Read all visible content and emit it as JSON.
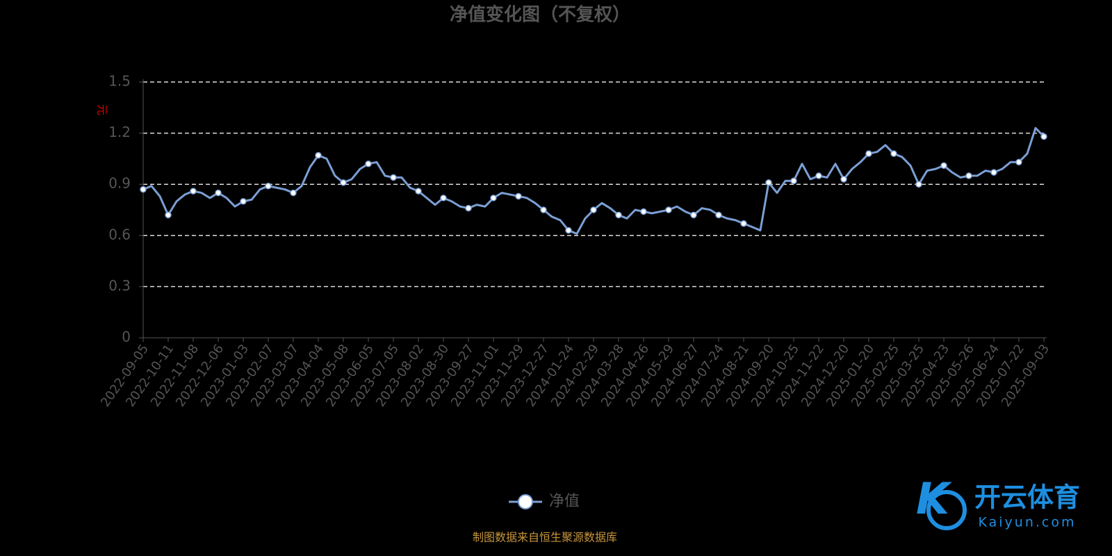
{
  "chart_data": {
    "type": "line",
    "title": "净值变化图（不复权）",
    "y_label": "元",
    "source": "制图数据来自恒生聚源数据库",
    "watermark": {
      "title": "开云体育",
      "site": "Kaiyun.com"
    },
    "categories": [
      "2022-09-05",
      null,
      null,
      "2022-10-11",
      null,
      null,
      "2022-11-08",
      null,
      null,
      "2022-12-06",
      null,
      null,
      "2023-01-03",
      null,
      null,
      "2023-02-07",
      null,
      null,
      "2023-03-07",
      null,
      null,
      "2023-04-04",
      null,
      null,
      "2023-05-08",
      null,
      null,
      "2023-06-05",
      null,
      null,
      "2023-07-05",
      null,
      null,
      "2023-08-02",
      null,
      null,
      "2023-08-30",
      null,
      null,
      "2023-09-27",
      null,
      null,
      "2023-11-01",
      null,
      null,
      "2023-11-29",
      null,
      null,
      "2023-12-27",
      null,
      null,
      "2024-01-24",
      null,
      null,
      "2024-02-29",
      null,
      null,
      "2024-03-28",
      null,
      null,
      "2024-04-26",
      null,
      null,
      "2024-05-29",
      null,
      null,
      "2024-06-27",
      null,
      null,
      "2024-07-24",
      null,
      null,
      "2024-08-21",
      null,
      null,
      "2024-09-20",
      null,
      null,
      "2024-10-25",
      null,
      null,
      "2024-11-22",
      null,
      null,
      "2024-12-20",
      null,
      null,
      "2025-01-20",
      null,
      null,
      "2025-02-25",
      null,
      null,
      "2025-03-25",
      null,
      null,
      "2025-04-23",
      null,
      null,
      "2025-05-26",
      null,
      null,
      "2025-06-24",
      null,
      null,
      "2025-07-22",
      null,
      null,
      "2025-09-03"
    ],
    "series": [
      {
        "name": "净值",
        "color": "#7b9fd4",
        "values": [
          0.87,
          0.89,
          0.83,
          0.72,
          0.8,
          0.84,
          0.86,
          0.85,
          0.82,
          0.85,
          0.82,
          0.77,
          0.8,
          0.81,
          0.87,
          0.89,
          0.88,
          0.87,
          0.85,
          0.89,
          1.0,
          1.07,
          1.05,
          0.95,
          0.91,
          0.93,
          0.99,
          1.02,
          1.03,
          0.95,
          0.94,
          0.94,
          0.88,
          0.86,
          0.82,
          0.78,
          0.82,
          0.8,
          0.77,
          0.76,
          0.78,
          0.77,
          0.82,
          0.85,
          0.84,
          0.83,
          0.82,
          0.79,
          0.75,
          0.71,
          0.69,
          0.63,
          0.61,
          0.7,
          0.75,
          0.79,
          0.76,
          0.72,
          0.7,
          0.75,
          0.74,
          0.73,
          0.74,
          0.75,
          0.77,
          0.74,
          0.72,
          0.76,
          0.75,
          0.72,
          0.7,
          0.69,
          0.67,
          0.65,
          0.63,
          0.91,
          0.85,
          0.92,
          0.92,
          1.02,
          0.93,
          0.95,
          0.94,
          1.02,
          0.93,
          0.99,
          1.03,
          1.08,
          1.09,
          1.13,
          1.08,
          1.06,
          1.01,
          0.9,
          0.98,
          0.99,
          1.01,
          0.97,
          0.94,
          0.95,
          0.95,
          0.98,
          0.97,
          0.99,
          1.03,
          1.03,
          1.08,
          1.23,
          1.18
        ]
      }
    ],
    "ylim": [
      0,
      1.5
    ],
    "yticks": [
      0,
      0.3,
      0.6,
      0.9,
      1.2,
      1.5
    ],
    "grid": true,
    "legend": "bottom"
  }
}
